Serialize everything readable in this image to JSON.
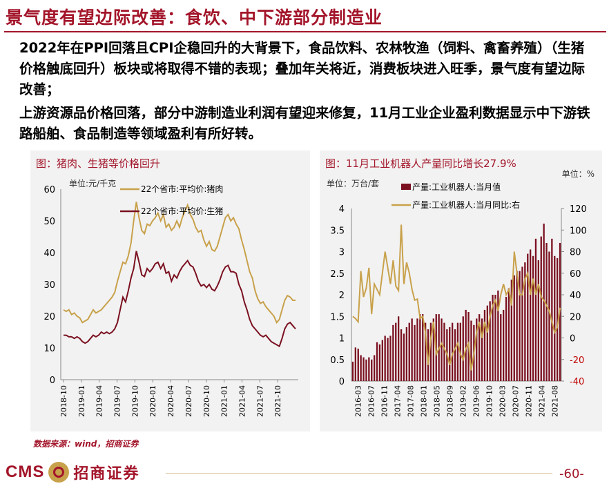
{
  "header": {
    "title": "景气度有望边际改善：食饮、中下游部分制造业"
  },
  "paragraphs": [
    "2022年在PPI回落且CPI企稳回升的大背景下，食品饮料、农林牧渔（饲料、禽畜养殖）（生猪价格触底回升）板块或将取得不错的表现；叠加年关将近，消费板块进入旺季，景气度有望边际改善；",
    "上游资源品价格回落，部分中游制造业利润有望迎来修复，11月工业企业盈利数据显示中下游铁路船舶、食品制造等领域盈利有所好转。"
  ],
  "footer": {
    "source": "数据来源：wind，招商证券",
    "logo_text": "CMS",
    "logo_cn": "招商证券",
    "page_number": "-60-"
  },
  "colors": {
    "brand": "#a3152a",
    "gold": "#c8a14b",
    "dark_red": "#7a1020"
  },
  "chart_data": [
    {
      "type": "line",
      "title": "图：猪肉、生猪等价格回升",
      "unit_label": "单位:元/千克",
      "ylim": [
        0,
        60
      ],
      "yticks": [
        0,
        10,
        20,
        30,
        40,
        50,
        60
      ],
      "x_range": [
        "2018-10",
        "2022-01"
      ],
      "xticks": [
        "2018-10",
        "2019-01",
        "2019-04",
        "2019-07",
        "2019-10",
        "2020-01",
        "2020-04",
        "2020-07",
        "2020-10",
        "2021-01",
        "2021-04",
        "2021-07",
        "2021-10"
      ],
      "series": [
        {
          "name": "22个省市:平均价:猪肉",
          "color": "#c8a14b",
          "values": [
            22,
            21.5,
            22,
            20.5,
            21,
            20,
            19.5,
            18,
            18.5,
            19,
            20.5,
            22,
            21,
            21.5,
            22,
            23,
            24,
            25,
            26,
            27.5,
            31,
            34,
            37,
            36.5,
            39,
            43,
            50,
            56,
            51,
            47,
            46,
            49,
            48.5,
            50,
            51,
            52.5,
            50,
            52,
            48,
            49,
            47,
            48,
            50,
            48,
            51,
            53,
            55,
            52,
            50.5,
            48,
            46.5,
            47,
            44,
            42,
            43.5,
            41,
            40.5,
            42,
            45,
            48,
            51,
            52,
            50,
            51,
            49,
            47.5,
            44,
            41,
            37.5,
            34,
            32,
            28,
            25.5,
            24,
            24.5,
            23,
            22,
            21,
            20,
            18,
            19,
            22,
            25,
            26.5,
            26,
            25,
            25
          ]
        },
        {
          "name": "22个省市:平均价:生猪",
          "color": "#7a1020",
          "values": [
            14,
            14,
            13.5,
            13.5,
            13,
            13.5,
            13,
            12,
            11.5,
            12,
            13,
            14,
            13.5,
            14,
            15,
            14.5,
            15,
            14.5,
            15,
            16,
            18,
            22,
            26,
            24.5,
            28,
            32,
            35,
            40.5,
            37,
            33,
            32.5,
            35,
            34,
            35,
            36.5,
            37,
            35,
            36.5,
            33.5,
            34,
            31,
            33,
            32,
            34,
            35.5,
            36.5,
            37.5,
            36,
            35.5,
            33.5,
            31,
            29.5,
            30,
            29,
            30,
            28.5,
            28,
            29.5,
            31.5,
            34,
            35.5,
            36,
            34,
            34,
            33.5,
            30,
            28,
            24.5,
            22,
            19,
            17,
            16,
            15,
            14,
            13.5,
            14,
            13,
            12,
            11.5,
            11,
            10.5,
            13,
            16,
            17.5,
            18,
            17,
            16
          ]
        }
      ]
    },
    {
      "type": "bar",
      "title": "图：11月工业机器人产量同比增长27.9%",
      "unit_left": "单位：万台/套",
      "unit_right": "单位：%",
      "ylim_left": [
        0,
        4
      ],
      "yticks_left": [
        "0",
        "0.5",
        "1",
        "1.5",
        "2",
        "2.5",
        "3",
        "3.5",
        "4"
      ],
      "ylim_right": [
        -40,
        120
      ],
      "yticks_right": [
        "-40",
        "-20",
        "0",
        "20",
        "40",
        "60",
        "80",
        "100",
        "120"
      ],
      "xticks": [
        "2016-03",
        "2016-07",
        "2016-11",
        "2017-04",
        "2017-08",
        "2018-01",
        "2018-05",
        "2018-09",
        "2019-02",
        "2019-06",
        "2019-10",
        "2020-03",
        "2020-07",
        "2020-11",
        "2021-04",
        "2021-08"
      ],
      "series": [
        {
          "name": "产量:工业机器人:当月值",
          "axis": "left",
          "color": "#7a1020",
          "values": [
            0.45,
            0.78,
            0.75,
            0.6,
            0.55,
            0.5,
            0.55,
            0.5,
            0.6,
            0.9,
            0.85,
            0.95,
            1.05,
            1.0,
            1.05,
            1.3,
            1.35,
            1.5,
            1.2,
            1.1,
            1.25,
            1.35,
            1.45,
            1.3,
            1.45,
            1.55,
            1.55,
            1.35,
            1.2,
            1.35,
            1.45,
            1.55,
            1.55,
            1.45,
            1.35,
            1.2,
            1.25,
            1.35,
            1.2,
            1.35,
            1.35,
            1.5,
            1.65,
            1.6,
            1.4,
            1.3,
            1.45,
            1.55,
            1.45,
            1.65,
            1.75,
            1.85,
            2.0,
            2.0,
            2.1,
            1.55,
            1.65,
            1.95,
            2.15,
            2.35,
            2.45,
            2.55,
            2.55,
            2.65,
            2.75,
            2.95,
            3.05,
            2.9,
            3.3,
            2.8,
            3.35,
            3.65,
            3.2,
            3.0,
            3.3,
            2.9,
            2.85,
            3.2
          ]
        },
        {
          "name": "产量:工业机器人:当月同比:右",
          "axis": "right",
          "color": "#c8a14b",
          "values": [
            20,
            18,
            15,
            62,
            38,
            46,
            65,
            22,
            50,
            45,
            40,
            60,
            80,
            65,
            50,
            72,
            48,
            44,
            105,
            50,
            70,
            60,
            45,
            35,
            36,
            18,
            20,
            5,
            -25,
            0,
            15,
            -15,
            -10,
            -5,
            -10,
            -15,
            -25,
            -15,
            -10,
            -5,
            -15,
            -20,
            -10,
            -5,
            -30,
            -15,
            5,
            15,
            0,
            15,
            5,
            20,
            30,
            35,
            25,
            40,
            50,
            40,
            45,
            30,
            80,
            60,
            40,
            40,
            55,
            60,
            40,
            55,
            40,
            50,
            38,
            35,
            30,
            25,
            15,
            5,
            10,
            28
          ]
        }
      ]
    }
  ]
}
